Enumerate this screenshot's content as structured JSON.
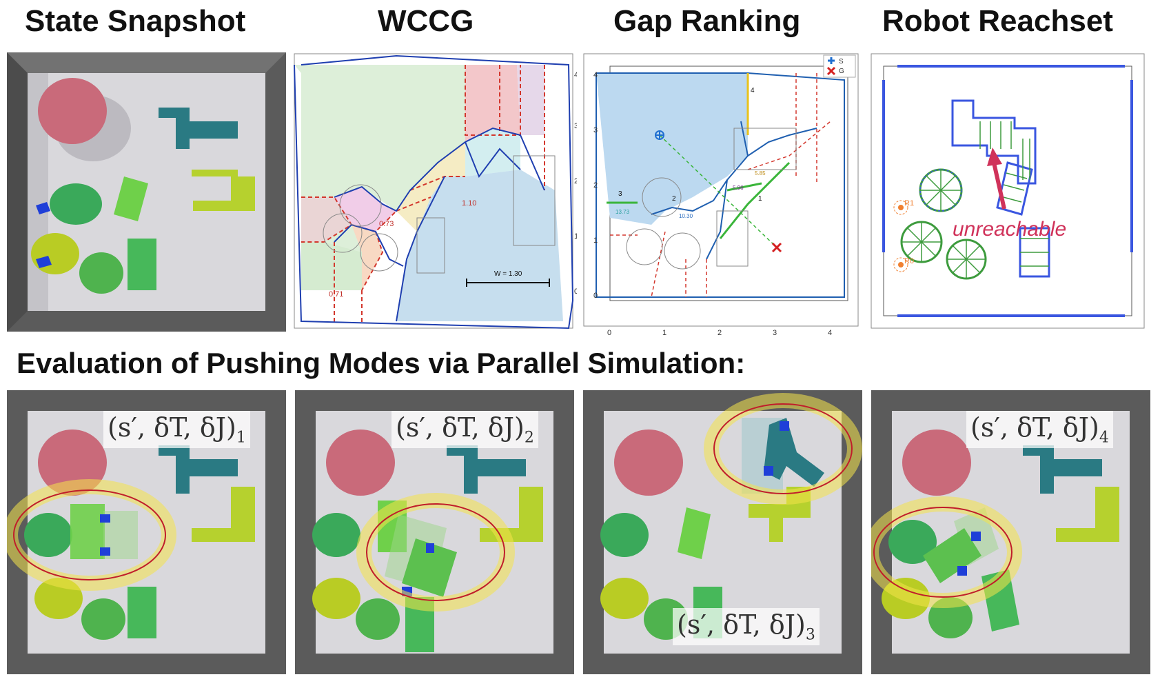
{
  "headers": {
    "state_snapshot": "State Snapshot",
    "wccg": "WCCG",
    "gap_ranking": "Gap Ranking",
    "robot_reachset": "Robot Reachset"
  },
  "section_title": "Evaluation of Pushing Modes via Parallel Simulation:",
  "wccg": {
    "edge_labels": [
      "0.73",
      "1.10",
      "0.71"
    ],
    "scale_label": "W = 1.30",
    "y_ticks": [
      "4",
      "3",
      "2",
      "1",
      "0"
    ]
  },
  "gap_ranking": {
    "legend": [
      "S",
      "G"
    ],
    "gap_labels": [
      "4",
      "3",
      "2",
      "1"
    ],
    "cost_labels": [
      "13.73",
      "10.30",
      "5.96",
      "5.85"
    ],
    "x_ticks": [
      "0",
      "1",
      "2",
      "3",
      "4"
    ],
    "y_ticks": [
      "4",
      "3",
      "2",
      "1",
      "0"
    ]
  },
  "reachset": {
    "robot_labels": [
      "R1",
      "R0"
    ],
    "annotation": "unreachable"
  },
  "modes": [
    {
      "tuple": "(s′, δT, δJ)",
      "subscript": "1"
    },
    {
      "tuple": "(s′, δT, δJ)",
      "subscript": "2"
    },
    {
      "tuple": "(s′, δT, δJ)",
      "subscript": "3"
    },
    {
      "tuple": "(s′, δT, δJ)",
      "subscript": "4"
    }
  ],
  "colors": {
    "wall": "#5b5b5b",
    "floor": "#d9d8dc",
    "pink_cylinder": "#c96a7a",
    "teal_block": "#2a7a83",
    "lime_block": "#b6d12e",
    "green": "#3aa95a",
    "blue_marker": "#1f3fd8",
    "highlight_ring": "#c01d2b",
    "reachset_green": "#3d9b3d",
    "unreachable": "#d0325a"
  }
}
